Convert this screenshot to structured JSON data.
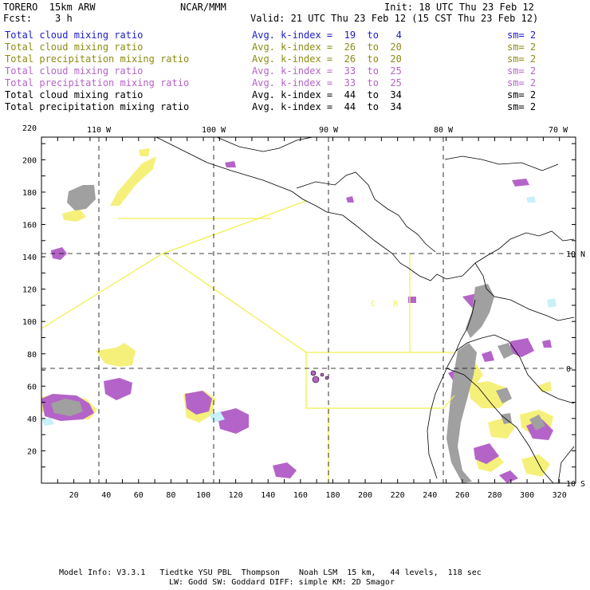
{
  "header": {
    "left_line1": "TORERO  15km ARW",
    "center_line1": "NCAR/MMM",
    "right_line1": "Init: 18 UTC Thu 23 Feb 12",
    "left_line2": "Fcst:    3 h",
    "right_line2": "Valid: 21 UTC Thu 23 Feb 12 (15 CST Thu 23 Feb 12)"
  },
  "legend": [
    {
      "field": "Total cloud mixing ratio",
      "kindex": "Avg. k-index =  19  to   4",
      "sm": "sm= 2",
      "color": "#1c1cc8"
    },
    {
      "field": "Total cloud mixing ratio",
      "kindex": "Avg. k-index =  26  to  20",
      "sm": "sm= 2",
      "color": "#8c8c14"
    },
    {
      "field": "Total precipitation mixing ratio",
      "kindex": "Avg. k-index =  26  to  20",
      "sm": "sm= 2",
      "color": "#8c8c14"
    },
    {
      "field": "Total cloud mixing ratio",
      "kindex": "Avg. k-index =  33  to  25",
      "sm": "sm= 2",
      "color": "#b464c8"
    },
    {
      "field": "Total precipitation mixing ratio",
      "kindex": "Avg. k-index =  33  to  25",
      "sm": "sm= 2",
      "color": "#b464c8"
    },
    {
      "field": "Total cloud mixing ratio",
      "kindex": "Avg. k-index =  44  to  34",
      "sm": "sm= 2",
      "color": "#000000"
    },
    {
      "field": "Total precipitation mixing ratio",
      "kindex": "Avg. k-index =  44  to  34",
      "sm": "sm= 2",
      "color": "#000000"
    }
  ],
  "map": {
    "lon_labels": [
      "110 W",
      "100 W",
      "90 W",
      "80 W",
      "70 W"
    ],
    "lat_labels": [
      "10 N",
      "0",
      "10 S"
    ],
    "y_ticks": [
      "220",
      "200",
      "180",
      "160",
      "140",
      "120",
      "100",
      "80",
      "60",
      "40",
      "20"
    ],
    "x_ticks": [
      "20",
      "40",
      "60",
      "80",
      "100",
      "120",
      "140",
      "160",
      "180",
      "200",
      "220",
      "240",
      "260",
      "280",
      "300",
      "320"
    ],
    "map_text": [
      "C",
      "R"
    ],
    "colors": {
      "coast": "#000000",
      "grid": "#000000",
      "boundary": "#f0f050",
      "cloud_yellow": "#f5f07a",
      "precip_purple": "#b464c8",
      "cloud_gray": "#a0a0a0",
      "light_blue": "#c8f0f8"
    }
  },
  "footer": {
    "line1": "Model Info: V3.3.1   Tiedtke YSU PBL  Thompson    Noah LSM  15 km,   44 levels,  118 sec",
    "line2": "LW: Godd SW: Goddard DIFF: simple KM: 2D Smagor"
  }
}
